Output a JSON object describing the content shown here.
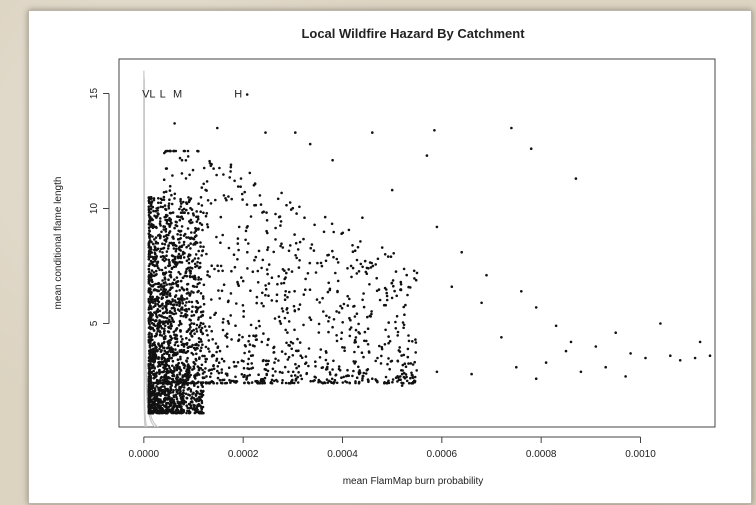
{
  "chart_data": {
    "type": "scatter",
    "title": "Local Wildfire Hazard By Catchment",
    "xlabel": "mean FlamMap burn probability",
    "ylabel": "mean conditional flame length",
    "xlim": [
      -5e-05,
      0.00115
    ],
    "ylim": [
      0.5,
      16.5
    ],
    "x_ticks": [
      0.0,
      0.0002,
      0.0004,
      0.0006,
      0.0008,
      0.001
    ],
    "x_tick_labels": [
      "0.0000",
      "0.0002",
      "0.0004",
      "0.0006",
      "0.0008",
      "0.0010"
    ],
    "y_ticks": [
      5,
      10,
      15
    ],
    "y_tick_labels": [
      "5",
      "10",
      "15"
    ],
    "hazard_classes": [
      {
        "label": "VL",
        "x": 1e-05,
        "y": 15
      },
      {
        "label": "L",
        "x": 3.8e-05,
        "y": 15
      },
      {
        "label": "M",
        "x": 6.8e-05,
        "y": 15
      },
      {
        "label": "H",
        "x": 0.00019,
        "y": 15
      }
    ],
    "curve_color": "#c8c8c8",
    "point_color": "#111111",
    "seed": 7,
    "dense_cluster": {
      "count": 1700,
      "x_min": 1e-05,
      "x_max": 0.00012,
      "y_min": 1.1,
      "y_max": 10.5
    },
    "mid_cloud": {
      "count": 1100,
      "x_min": 4e-05,
      "x_max": 0.00055,
      "y_min": 1.2,
      "y_max": 12.5
    },
    "sparse_points": [
      [
        6.2e-05,
        13.7
      ],
      [
        0.000148,
        13.5
      ],
      [
        0.000245,
        13.3
      ],
      [
        0.000305,
        13.3
      ],
      [
        0.00046,
        13.3
      ],
      [
        0.000585,
        13.4
      ],
      [
        0.00074,
        13.5
      ],
      [
        0.00078,
        12.6
      ],
      [
        0.00057,
        12.3
      ],
      [
        0.00038,
        12.1
      ],
      [
        0.000175,
        11.8
      ],
      [
        0.000335,
        12.8
      ],
      [
        0.00087,
        11.3
      ],
      [
        0.0005,
        10.8
      ],
      [
        0.00059,
        9.2
      ],
      [
        0.00064,
        8.1
      ],
      [
        0.00069,
        7.1
      ],
      [
        0.00076,
        6.4
      ],
      [
        0.00079,
        5.7
      ],
      [
        0.00083,
        4.9
      ],
      [
        0.00086,
        4.2
      ],
      [
        0.00091,
        4.0
      ],
      [
        0.00095,
        4.6
      ],
      [
        0.00098,
        3.7
      ],
      [
        0.00101,
        3.5
      ],
      [
        0.00104,
        5.0
      ],
      [
        0.00106,
        3.6
      ],
      [
        0.00108,
        3.4
      ],
      [
        0.00111,
        3.5
      ],
      [
        0.00112,
        4.2
      ],
      [
        0.00114,
        3.6
      ],
      [
        0.00072,
        4.4
      ],
      [
        0.00068,
        5.9
      ],
      [
        0.00062,
        6.6
      ],
      [
        0.00055,
        7.2
      ],
      [
        0.00048,
        8.3
      ],
      [
        0.00044,
        9.6
      ],
      [
        0.00041,
        7.4
      ],
      [
        0.00036,
        6.1
      ],
      [
        0.00088,
        2.9
      ],
      [
        0.00081,
        3.3
      ],
      [
        0.00075,
        3.1
      ],
      [
        0.00066,
        2.8
      ],
      [
        0.00059,
        2.9
      ],
      [
        0.00052,
        2.3
      ],
      [
        0.00046,
        2.6
      ],
      [
        0.00093,
        3.1
      ],
      [
        0.00097,
        2.7
      ],
      [
        0.00085,
        3.8
      ],
      [
        0.00079,
        2.6
      ]
    ],
    "hazard_curves": [
      {
        "k": 1.4e-05,
        "x_start": 9e-07
      },
      {
        "k": 1.2e-06,
        "x_start": 7.5e-08
      },
      {
        "k": 2.8e-06,
        "x_start": 1.8e-07
      },
      {
        "k": 1.1e-05,
        "x_start": 7e-07
      }
    ],
    "grid": false,
    "legend": "none"
  }
}
